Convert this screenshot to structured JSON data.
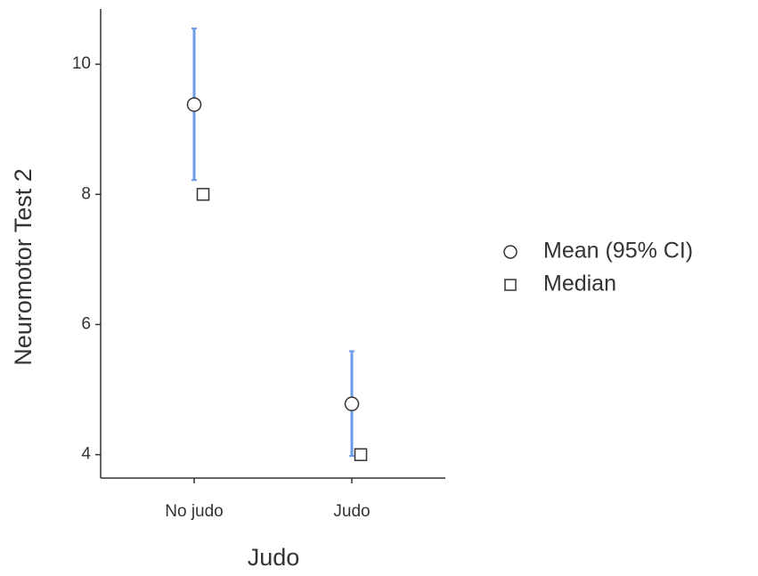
{
  "chart_data": {
    "type": "errorbar",
    "xlabel": "Judo",
    "ylabel": "Neuromotor Test 2",
    "categories": [
      "No judo",
      "Judo"
    ],
    "series": [
      {
        "name": "Mean (95% CI)",
        "marker": "circle",
        "color": "#ffffff",
        "error_color": "#6c9be8",
        "values": [
          9.38,
          4.78
        ],
        "lower": [
          8.22,
          3.98
        ],
        "upper": [
          10.55,
          5.59
        ]
      },
      {
        "name": "Median",
        "marker": "square",
        "color": "#ffffff",
        "values": [
          8,
          4
        ]
      }
    ],
    "ylim": [
      3.64,
      10.85
    ],
    "yticks": [
      4,
      6,
      8,
      10
    ],
    "legend": "right",
    "grid": false
  }
}
